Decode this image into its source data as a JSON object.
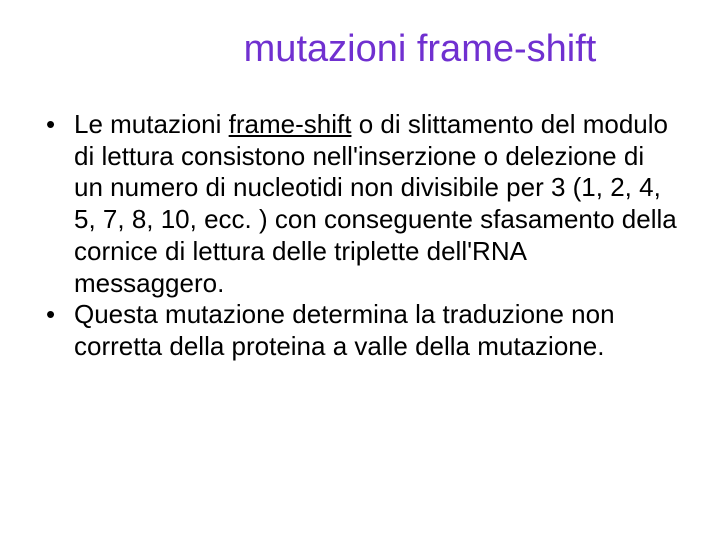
{
  "title": {
    "text": "mutazioni frame-shift",
    "color": "#7030d0",
    "fontsize": 38
  },
  "body": {
    "fontsize": 26,
    "text_color": "#000000",
    "bullets": [
      {
        "pre": "Le mutazioni ",
        "underlined": "frame-shift",
        "post": " o di slittamento del modulo di lettura consistono nell'inserzione o delezione di un numero di nucleotidi non divisibile per 3 (1, 2, 4, 5, 7, 8, 10, ecc. )  con conseguente sfasamento della cornice di lettura delle triplette dell'RNA messaggero."
      },
      {
        "pre": "Questa mutazione determina la traduzione non corretta della proteina a valle della mutazione.",
        "underlined": "",
        "post": ""
      }
    ]
  },
  "background_color": "#ffffff"
}
